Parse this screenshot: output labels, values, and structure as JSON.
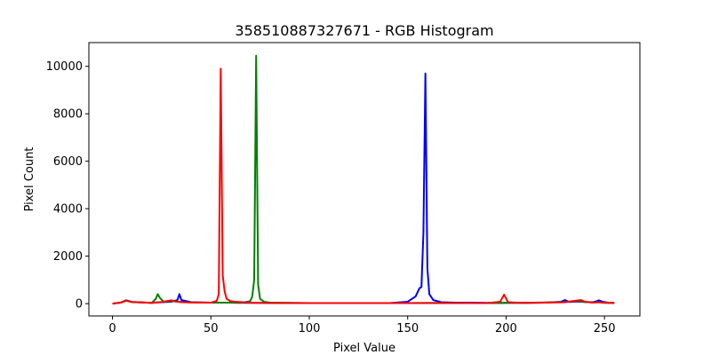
{
  "chart_data": {
    "type": "line",
    "title": "358510887327671 - RGB Histogram",
    "xlabel": "Pixel Value",
    "ylabel": "Pixel Count",
    "xlim": [
      -12,
      268
    ],
    "ylim": [
      -520,
      11000
    ],
    "xticks": [
      0,
      50,
      100,
      150,
      200,
      250
    ],
    "yticks": [
      0,
      2000,
      4000,
      6000,
      8000,
      10000
    ],
    "grid": false,
    "legend": "none",
    "series": [
      {
        "color": "#0000ff",
        "points": [
          [
            0,
            0
          ],
          [
            4,
            40
          ],
          [
            7,
            140
          ],
          [
            10,
            70
          ],
          [
            15,
            50
          ],
          [
            20,
            30
          ],
          [
            25,
            60
          ],
          [
            30,
            80
          ],
          [
            33,
            150
          ],
          [
            34,
            400
          ],
          [
            35,
            150
          ],
          [
            40,
            60
          ],
          [
            50,
            40
          ],
          [
            60,
            40
          ],
          [
            70,
            30
          ],
          [
            80,
            30
          ],
          [
            100,
            20
          ],
          [
            120,
            20
          ],
          [
            140,
            20
          ],
          [
            150,
            80
          ],
          [
            154,
            300
          ],
          [
            156,
            650
          ],
          [
            157,
            700
          ],
          [
            158,
            3000
          ],
          [
            159,
            9700
          ],
          [
            160,
            1500
          ],
          [
            161,
            400
          ],
          [
            163,
            150
          ],
          [
            167,
            60
          ],
          [
            175,
            40
          ],
          [
            183,
            40
          ],
          [
            190,
            30
          ],
          [
            200,
            30
          ],
          [
            210,
            30
          ],
          [
            220,
            40
          ],
          [
            228,
            80
          ],
          [
            230,
            150
          ],
          [
            232,
            70
          ],
          [
            236,
            90
          ],
          [
            240,
            70
          ],
          [
            244,
            60
          ],
          [
            246,
            100
          ],
          [
            247,
            140
          ],
          [
            249,
            80
          ],
          [
            252,
            40
          ],
          [
            255,
            30
          ]
        ]
      },
      {
        "color": "#008000",
        "points": [
          [
            0,
            0
          ],
          [
            4,
            40
          ],
          [
            7,
            130
          ],
          [
            10,
            60
          ],
          [
            15,
            50
          ],
          [
            20,
            30
          ],
          [
            22,
            200
          ],
          [
            23,
            400
          ],
          [
            24,
            250
          ],
          [
            26,
            80
          ],
          [
            30,
            100
          ],
          [
            35,
            70
          ],
          [
            40,
            50
          ],
          [
            50,
            40
          ],
          [
            60,
            40
          ],
          [
            65,
            30
          ],
          [
            70,
            100
          ],
          [
            71,
            300
          ],
          [
            72,
            1000
          ],
          [
            73,
            10450
          ],
          [
            74,
            800
          ],
          [
            75,
            200
          ],
          [
            77,
            80
          ],
          [
            80,
            40
          ],
          [
            90,
            30
          ],
          [
            100,
            20
          ],
          [
            120,
            20
          ],
          [
            140,
            20
          ],
          [
            150,
            20
          ],
          [
            160,
            30
          ],
          [
            170,
            30
          ],
          [
            180,
            20
          ],
          [
            190,
            20
          ],
          [
            197,
            20
          ],
          [
            200,
            30
          ],
          [
            205,
            30
          ],
          [
            210,
            30
          ],
          [
            220,
            50
          ],
          [
            230,
            70
          ],
          [
            236,
            110
          ],
          [
            240,
            70
          ],
          [
            244,
            50
          ],
          [
            247,
            60
          ],
          [
            250,
            30
          ],
          [
            255,
            20
          ]
        ]
      },
      {
        "color": "#ff0000",
        "points": [
          [
            0,
            0
          ],
          [
            4,
            40
          ],
          [
            7,
            120
          ],
          [
            10,
            70
          ],
          [
            15,
            50
          ],
          [
            20,
            30
          ],
          [
            25,
            70
          ],
          [
            28,
            110
          ],
          [
            30,
            140
          ],
          [
            32,
            90
          ],
          [
            35,
            60
          ],
          [
            40,
            50
          ],
          [
            45,
            40
          ],
          [
            50,
            40
          ],
          [
            53,
            120
          ],
          [
            54,
            400
          ],
          [
            55,
            9900
          ],
          [
            56,
            1200
          ],
          [
            57,
            500
          ],
          [
            58,
            200
          ],
          [
            60,
            100
          ],
          [
            62,
            80
          ],
          [
            66,
            60
          ],
          [
            70,
            40
          ],
          [
            75,
            30
          ],
          [
            80,
            20
          ],
          [
            90,
            20
          ],
          [
            100,
            20
          ],
          [
            110,
            20
          ],
          [
            120,
            20
          ],
          [
            130,
            20
          ],
          [
            140,
            20
          ],
          [
            150,
            20
          ],
          [
            160,
            20
          ],
          [
            170,
            20
          ],
          [
            180,
            20
          ],
          [
            190,
            20
          ],
          [
            197,
            80
          ],
          [
            199,
            380
          ],
          [
            201,
            60
          ],
          [
            205,
            40
          ],
          [
            210,
            30
          ],
          [
            220,
            40
          ],
          [
            230,
            60
          ],
          [
            236,
            130
          ],
          [
            238,
            150
          ],
          [
            240,
            80
          ],
          [
            244,
            40
          ],
          [
            247,
            60
          ],
          [
            250,
            40
          ],
          [
            255,
            30
          ]
        ]
      }
    ]
  }
}
